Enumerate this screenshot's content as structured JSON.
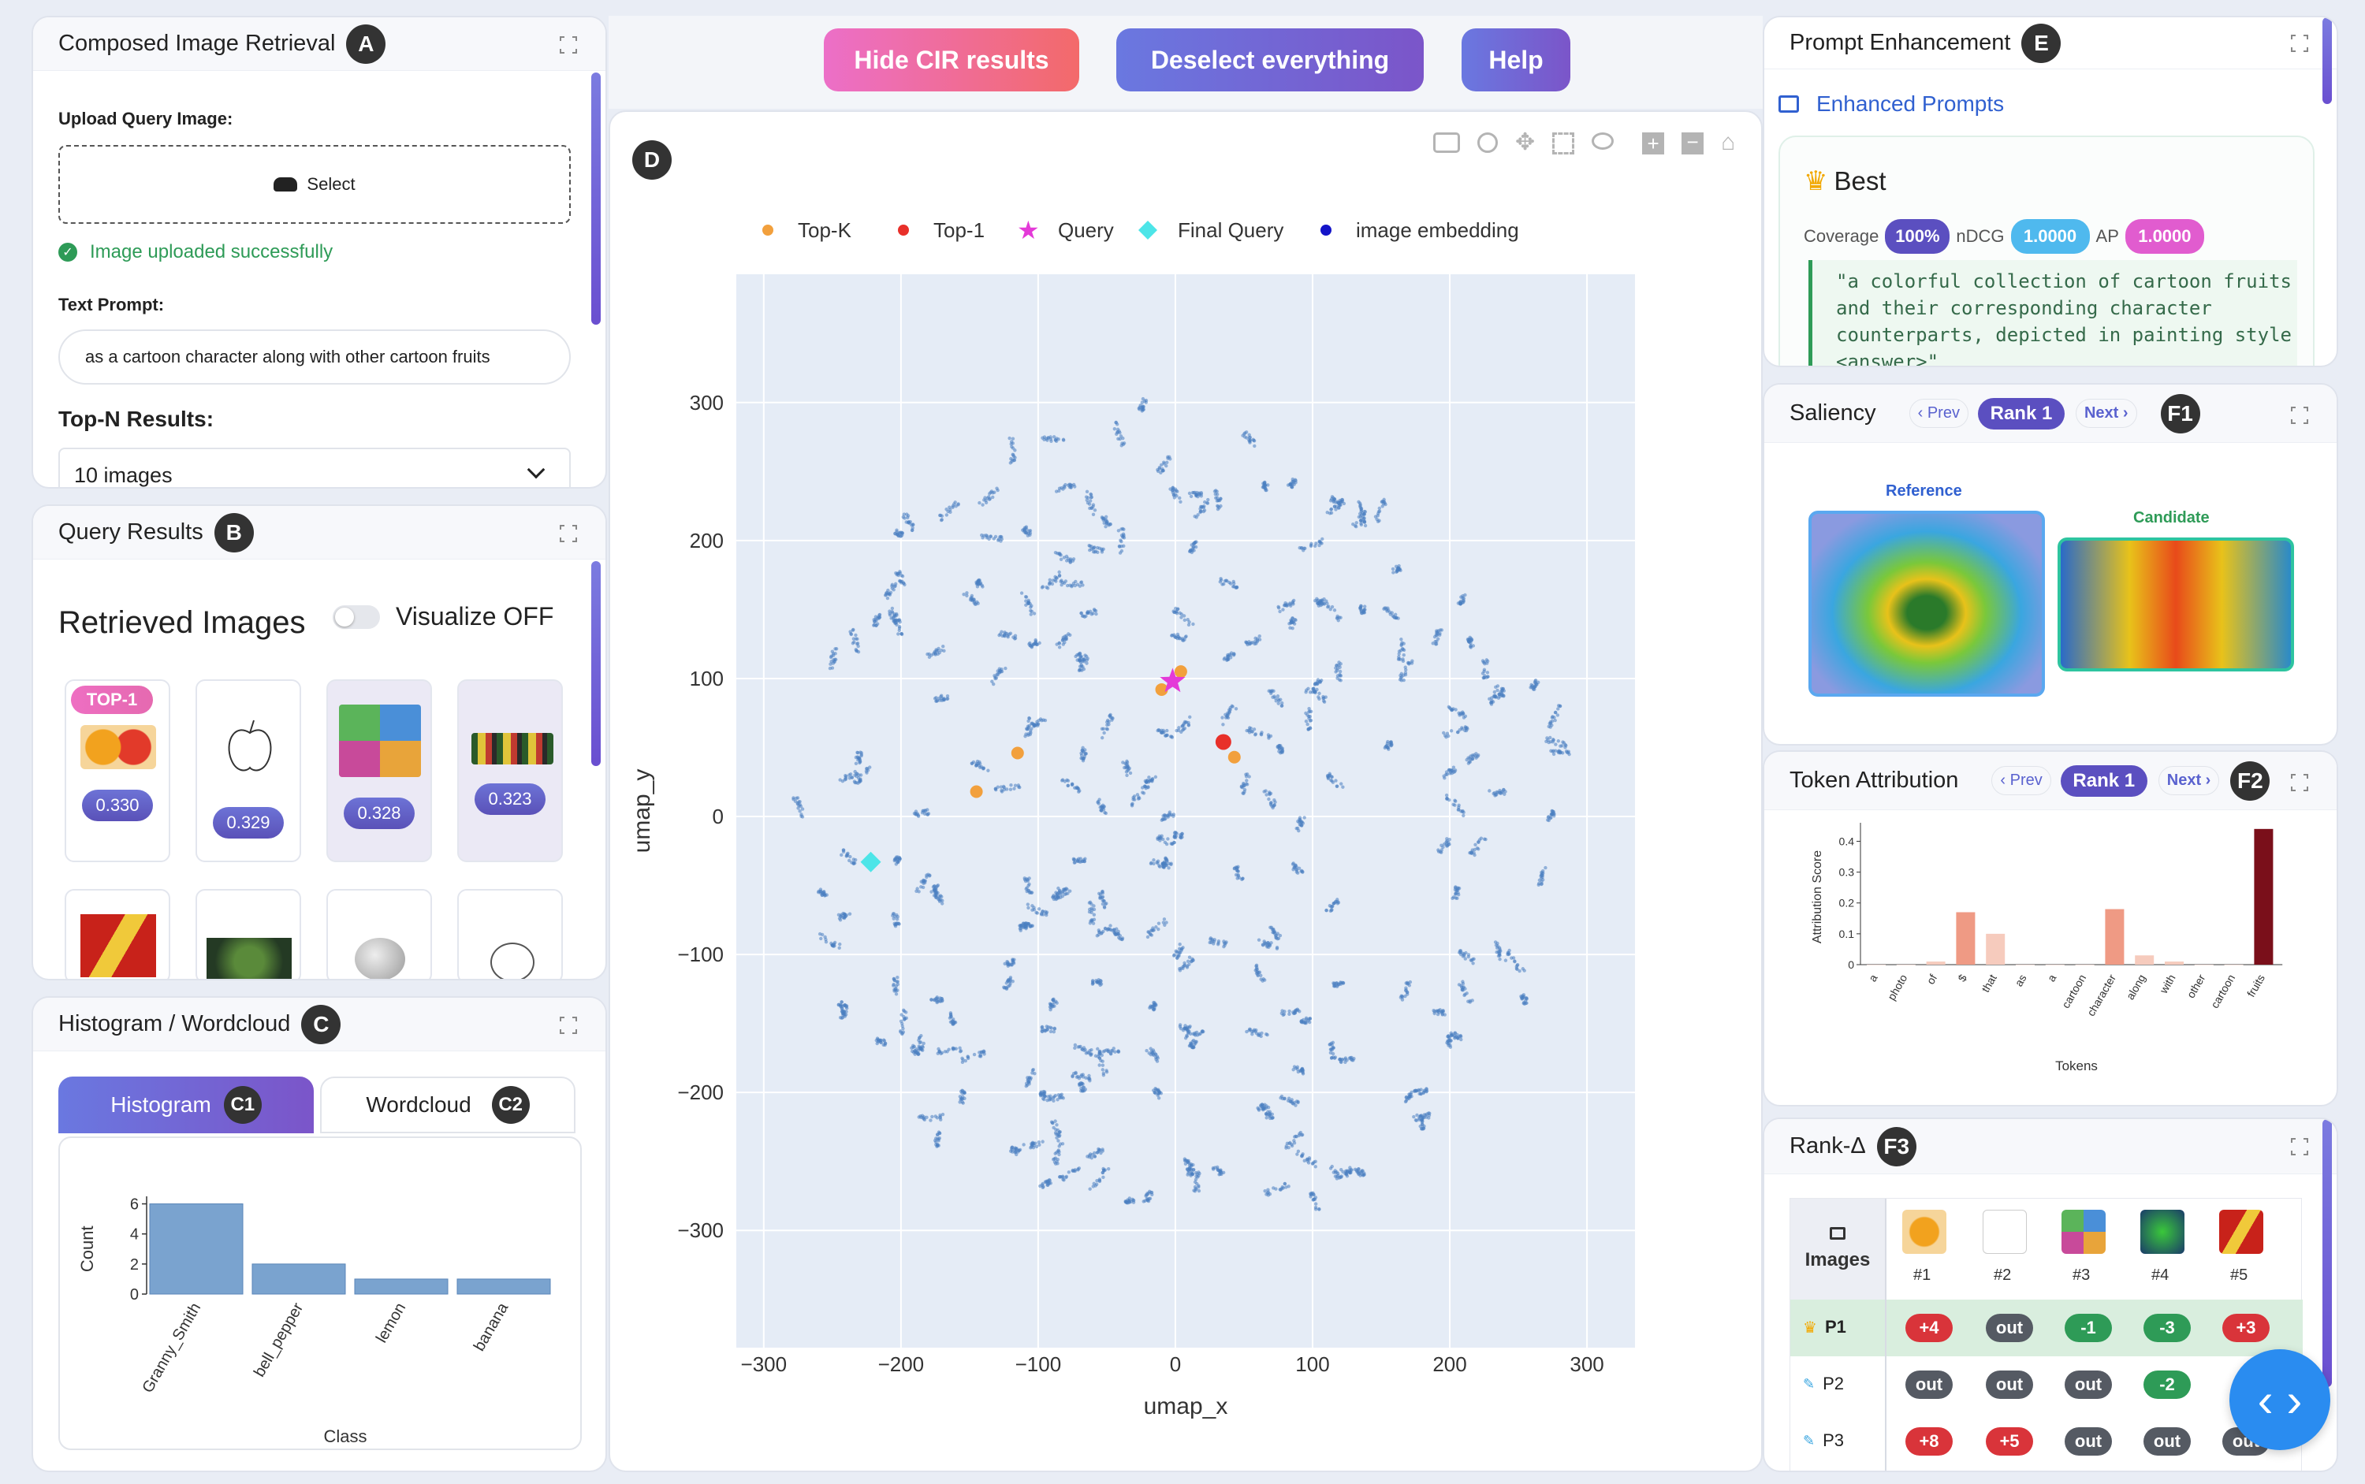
{
  "toolbar": {
    "hide_cir": "Hide CIR results",
    "deselect": "Deselect everything",
    "help": "Help"
  },
  "panelA": {
    "title": "Composed Image Retrieval",
    "badge": "A",
    "upload_label": "Upload Query Image:",
    "select_label": "Select",
    "upload_status": "Image uploaded successfully",
    "text_prompt_label": "Text Prompt:",
    "text_prompt_value": "as a cartoon character along with other cartoon fruits",
    "topn_label": "Top-N Results:",
    "topn_value": "10 images"
  },
  "panelB": {
    "title": "Query Results",
    "badge": "B",
    "heading": "Retrieved Images",
    "visualize_label": "Visualize OFF",
    "top_badge": "TOP-1",
    "scores": [
      "0.330",
      "0.329",
      "0.328",
      "0.323"
    ]
  },
  "panelC": {
    "title": "Histogram / Wordcloud",
    "badge": "C",
    "tab1": "Histogram",
    "tab1_badge": "C1",
    "tab2": "Wordcloud",
    "tab2_badge": "C2"
  },
  "panelD": {
    "badge": "D"
  },
  "panelE": {
    "title": "Prompt Enhancement",
    "badge": "E",
    "section": "Enhanced Prompts",
    "best": "Best",
    "coverage_label": "Coverage",
    "coverage": "100%",
    "ndcg_label": "nDCG",
    "ndcg": "1.0000",
    "ap_label": "AP",
    "ap": "1.0000",
    "prompt": "\"a colorful collection of cartoon fruits and their corresponding character counterparts, depicted in painting style <answer>\""
  },
  "panelF1": {
    "title": "Saliency",
    "badge": "F1",
    "prev": "Prev",
    "rank": "Rank 1",
    "next": "Next",
    "reference": "Reference",
    "candidate": "Candidate"
  },
  "panelF2": {
    "title": "Token Attribution",
    "badge": "F2",
    "prev": "Prev",
    "rank": "Rank 1",
    "next": "Next"
  },
  "panelF3": {
    "title": "Rank-Δ",
    "badge": "F3",
    "images_label": "Images",
    "cols": [
      "#1",
      "#2",
      "#3",
      "#4",
      "#5"
    ],
    "rows": [
      {
        "label": "P1",
        "cells": [
          "+4",
          "out",
          "-1",
          "-3",
          "+3"
        ]
      },
      {
        "label": "P2",
        "cells": [
          "out",
          "out",
          "out",
          "-2",
          ""
        ]
      },
      {
        "label": "P3",
        "cells": [
          "+8",
          "+5",
          "out",
          "out",
          "out"
        ]
      }
    ]
  },
  "chart_data": [
    {
      "id": "umap",
      "type": "scatter",
      "xlabel": "umap_x",
      "ylabel": "umap_y",
      "xlim": [
        -320,
        335
      ],
      "ylim": [
        -385,
        393
      ],
      "xticks": [
        -300,
        -200,
        -100,
        0,
        100,
        200,
        300
      ],
      "yticks": [
        -300,
        -200,
        -100,
        0,
        100,
        200,
        300
      ],
      "tick_labels_x": [
        "−300",
        "−200",
        "−100",
        "0",
        "100",
        "200",
        "300"
      ],
      "tick_labels_y": [
        "−300",
        "−200",
        "−100",
        "0",
        "100",
        "200",
        "300"
      ],
      "legend": [
        "Top-K",
        "Top-1",
        "Query",
        "Final Query",
        "image embedding"
      ],
      "legend_position": "top",
      "colors": {
        "topk": "#f2a03d",
        "top1": "#e8302a",
        "query": "#e43ad8",
        "final": "#4de5e8",
        "embed": "#1414c8"
      },
      "series": [
        {
          "name": "Top-K",
          "points": [
            [
              4,
              105
            ],
            [
              -10,
              92
            ],
            [
              -115,
              46
            ],
            [
              -145,
              18
            ],
            [
              43,
              43
            ]
          ]
        },
        {
          "name": "Top-1",
          "points": [
            [
              35,
              54
            ]
          ]
        },
        {
          "name": "Query",
          "points": [
            [
              -2,
              98
            ]
          ]
        },
        {
          "name": "Final Query",
          "points": [
            [
              -222,
              -33
            ]
          ]
        }
      ]
    },
    {
      "id": "histogram",
      "type": "bar",
      "xlabel": "Class",
      "ylabel": "Count",
      "categories": [
        "Granny_Smith",
        "bell_pepper",
        "lemon",
        "banana"
      ],
      "values": [
        6,
        2,
        1,
        1
      ],
      "ylim": [
        0,
        6.5
      ],
      "yticks": [
        0,
        2,
        4,
        6
      ]
    },
    {
      "id": "token_attribution",
      "type": "bar",
      "xlabel": "Tokens",
      "ylabel": "Attribution Score",
      "categories": [
        "a",
        "photo",
        "of",
        "$",
        "that",
        "as",
        "a",
        "cartoon",
        "character",
        "along",
        "with",
        "other",
        "cartoon",
        "fruits"
      ],
      "values": [
        0,
        0,
        0.01,
        0.17,
        0.1,
        0,
        0,
        0,
        0.18,
        0.03,
        0.01,
        0,
        0,
        0.44
      ],
      "ylim": [
        0,
        0.46
      ],
      "yticks": [
        0,
        0.1,
        0.2,
        0.3,
        0.4
      ],
      "ytick_labels": [
        "0",
        "0.1",
        "0.2",
        "0.3",
        "0.4"
      ]
    }
  ]
}
